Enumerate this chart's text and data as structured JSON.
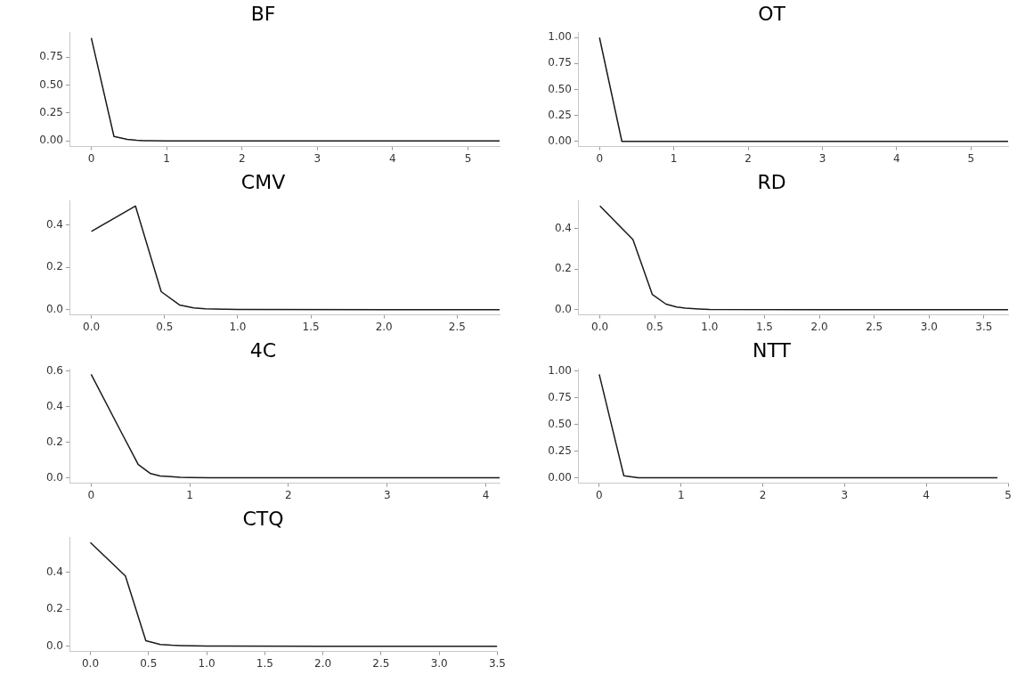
{
  "chart_data": [
    {
      "type": "line",
      "title": "BF",
      "x": [
        0,
        0.301,
        0.477,
        0.602,
        0.699,
        0.778,
        1,
        2,
        5.42
      ],
      "series": [
        {
          "color": "#1a1a1a",
          "values": [
            0.92,
            0.04,
            0.015,
            0.006,
            0.003,
            0.002,
            0.001,
            0,
            0
          ]
        }
      ],
      "xlim": [
        -0.29,
        5.42
      ],
      "ylim": [
        -0.05,
        0.97
      ],
      "xticks": [
        0,
        1,
        2,
        3,
        4,
        5
      ],
      "yticks": [
        {
          "value": 0,
          "label": "0.00"
        },
        {
          "value": 0.25,
          "label": "0.25"
        },
        {
          "value": 0.5,
          "label": "0.50"
        },
        {
          "value": 0.75,
          "label": "0.75"
        }
      ],
      "grid": false,
      "legend": false,
      "marker": "none",
      "line_style": "solid"
    },
    {
      "type": "line",
      "title": "OT",
      "x": [
        0,
        0.301,
        0.477,
        1,
        2,
        5.5
      ],
      "series": [
        {
          "color": "#1a1a1a",
          "values": [
            1.0,
            0,
            0,
            0,
            0,
            0
          ]
        }
      ],
      "xlim": [
        -0.29,
        5.5
      ],
      "ylim": [
        -0.05,
        1.05
      ],
      "xticks": [
        0,
        1,
        2,
        3,
        4,
        5
      ],
      "yticks": [
        {
          "value": 0,
          "label": "0.00"
        },
        {
          "value": 0.25,
          "label": "0.25"
        },
        {
          "value": 0.5,
          "label": "0.50"
        },
        {
          "value": 0.75,
          "label": "0.75"
        },
        {
          "value": 1,
          "label": "1.00"
        }
      ],
      "grid": false,
      "legend": false,
      "marker": "none",
      "line_style": "solid"
    },
    {
      "type": "line",
      "title": "CMV",
      "x": [
        0,
        0.301,
        0.477,
        0.602,
        0.699,
        0.778,
        0.903,
        1,
        2,
        2.79
      ],
      "series": [
        {
          "color": "#1a1a1a",
          "values": [
            0.37,
            0.49,
            0.085,
            0.022,
            0.008,
            0.004,
            0.002,
            0.001,
            0,
            0
          ]
        }
      ],
      "xlim": [
        -0.15,
        2.79
      ],
      "ylim": [
        -0.025,
        0.515
      ],
      "xticks": [
        {
          "value": 0,
          "label": "0.0"
        },
        0.5,
        {
          "value": 1,
          "label": "1.0"
        },
        1.5,
        {
          "value": 2,
          "label": "2.0"
        },
        2.5
      ],
      "yticks": [
        {
          "value": 0,
          "label": "0.0"
        },
        0.2,
        0.4
      ],
      "grid": false,
      "legend": false,
      "marker": "none",
      "line_style": "solid"
    },
    {
      "type": "line",
      "title": "RD",
      "x": [
        0,
        0.301,
        0.477,
        0.602,
        0.699,
        0.778,
        0.903,
        1,
        2,
        3.72
      ],
      "series": [
        {
          "color": "#1a1a1a",
          "values": [
            0.51,
            0.345,
            0.075,
            0.027,
            0.013,
            0.007,
            0.003,
            0.001,
            0,
            0
          ]
        }
      ],
      "xlim": [
        -0.2,
        3.72
      ],
      "ylim": [
        -0.026,
        0.536
      ],
      "xticks": [
        {
          "value": 0,
          "label": "0.0"
        },
        0.5,
        {
          "value": 1,
          "label": "1.0"
        },
        1.5,
        {
          "value": 2,
          "label": "2.0"
        },
        2.5,
        {
          "value": 3,
          "label": "3.0"
        },
        3.5
      ],
      "yticks": [
        {
          "value": 0,
          "label": "0.0"
        },
        0.2,
        0.4
      ],
      "grid": false,
      "legend": false,
      "marker": "none",
      "line_style": "solid"
    },
    {
      "type": "line",
      "title": "4C",
      "x": [
        0,
        0.301,
        0.477,
        0.602,
        0.699,
        0.778,
        0.903,
        1,
        1.2,
        2,
        4.14
      ],
      "series": [
        {
          "color": "#1a1a1a",
          "values": [
            0.58,
            0.26,
            0.075,
            0.024,
            0.01,
            0.008,
            0.003,
            0.002,
            0.001,
            0,
            0
          ]
        }
      ],
      "xlim": [
        -0.22,
        4.14
      ],
      "ylim": [
        -0.03,
        0.61
      ],
      "xticks": [
        0,
        1,
        2,
        3,
        4
      ],
      "yticks": [
        {
          "value": 0,
          "label": "0.0"
        },
        0.2,
        0.4,
        0.6
      ],
      "grid": false,
      "legend": false,
      "marker": "none",
      "line_style": "solid"
    },
    {
      "type": "line",
      "title": "NTT",
      "x": [
        0,
        0.301,
        0.477,
        1,
        2,
        4.87
      ],
      "series": [
        {
          "color": "#1a1a1a",
          "values": [
            0.97,
            0.02,
            0,
            0,
            0,
            0
          ]
        }
      ],
      "xlim": [
        -0.26,
        5
      ],
      "ylim": [
        -0.05,
        1.02
      ],
      "xticks": [
        0,
        1,
        2,
        3,
        4,
        5
      ],
      "yticks": [
        {
          "value": 0,
          "label": "0.00"
        },
        {
          "value": 0.25,
          "label": "0.25"
        },
        {
          "value": 0.5,
          "label": "0.50"
        },
        {
          "value": 0.75,
          "label": "0.75"
        },
        {
          "value": 1,
          "label": "1.00"
        }
      ],
      "grid": false,
      "legend": false,
      "marker": "none",
      "line_style": "solid"
    },
    {
      "type": "line",
      "title": "CTQ",
      "x": [
        0,
        0.301,
        0.477,
        0.602,
        0.699,
        0.778,
        0.903,
        1,
        2,
        3.5
      ],
      "series": [
        {
          "color": "#1a1a1a",
          "values": [
            0.56,
            0.38,
            0.03,
            0.01,
            0.006,
            0.004,
            0.002,
            0.001,
            0,
            0
          ]
        }
      ],
      "xlim": [
        -0.18,
        3.5
      ],
      "ylim": [
        -0.028,
        0.588
      ],
      "xticks": [
        {
          "value": 0,
          "label": "0.0"
        },
        0.5,
        {
          "value": 1,
          "label": "1.0"
        },
        1.5,
        {
          "value": 2,
          "label": "2.0"
        },
        2.5,
        {
          "value": 3,
          "label": "3.0"
        },
        3.5
      ],
      "yticks": [
        {
          "value": 0,
          "label": "0.0"
        },
        0.2,
        0.4
      ],
      "grid": false,
      "legend": false,
      "marker": "none",
      "line_style": "solid"
    }
  ]
}
